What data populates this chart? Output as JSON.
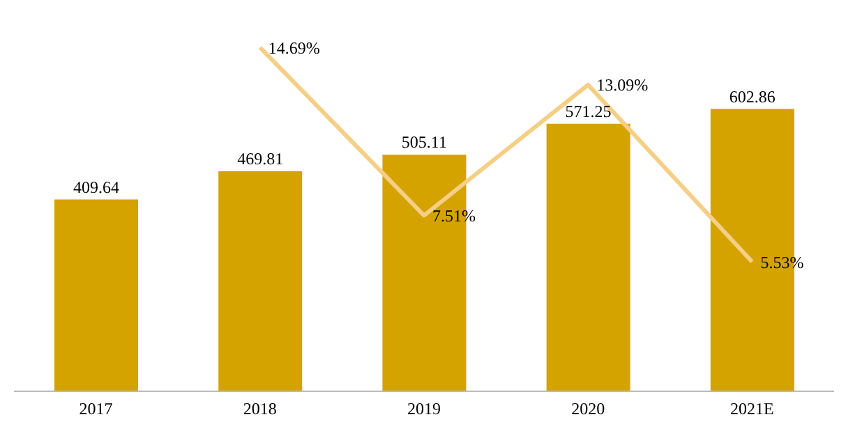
{
  "chart_data": {
    "type": "bar",
    "categories": [
      "2017",
      "2018",
      "2019",
      "2020",
      "2021E"
    ],
    "series": [
      {
        "color": "#d4a300",
        "values": [
          409.64,
          469.81,
          505.11,
          571.25,
          602.86
        ]
      },
      {
        "type": "line",
        "axis": "y2",
        "color": "#f5cf86",
        "values": [
          null,
          14.69,
          7.51,
          13.09,
          5.53
        ],
        "value_labels": [
          null,
          "14.69%",
          "7.51%",
          "13.09%",
          "5.53%"
        ]
      }
    ],
    "data_labels": true,
    "tick_labels": "x",
    "marker": "none"
  }
}
